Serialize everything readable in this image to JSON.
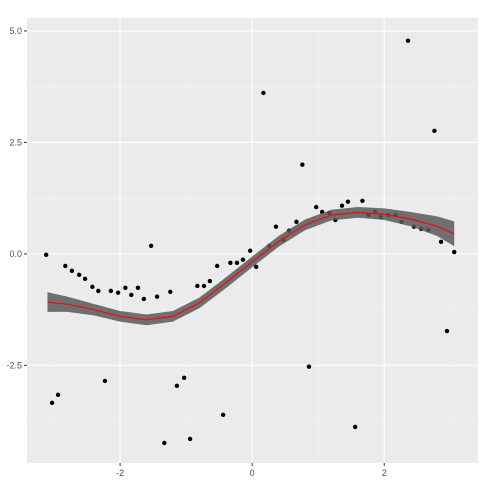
{
  "chart_data": {
    "type": "scatter",
    "x": [
      -3.12,
      -3.03,
      -2.94,
      -2.83,
      -2.73,
      -2.62,
      -2.53,
      -2.42,
      -2.33,
      -2.23,
      -2.14,
      -2.03,
      -1.92,
      -1.83,
      -1.73,
      -1.64,
      -1.53,
      -1.44,
      -1.33,
      -1.24,
      -1.14,
      -1.03,
      -0.94,
      -0.83,
      -0.73,
      -0.64,
      -0.53,
      -0.44,
      -0.33,
      -0.23,
      -0.14,
      -0.03,
      0.06,
      0.17,
      0.26,
      0.36,
      0.47,
      0.56,
      0.67,
      0.76,
      0.86,
      0.97,
      1.06,
      1.17,
      1.26,
      1.36,
      1.45,
      1.56,
      1.67,
      1.76,
      1.86,
      1.95,
      2.06,
      2.17,
      2.26,
      2.36,
      2.45,
      2.56,
      2.67,
      2.76,
      2.86,
      2.95,
      3.06
    ],
    "values": [
      -0.02,
      -3.34,
      -3.16,
      -0.27,
      -0.38,
      -0.47,
      -0.56,
      -0.74,
      -0.83,
      -2.85,
      -0.83,
      -0.87,
      -0.76,
      -0.92,
      -0.76,
      -1.01,
      0.18,
      -0.96,
      -4.24,
      -0.85,
      -2.96,
      -2.78,
      -4.15,
      -0.72,
      -0.72,
      -0.61,
      -0.27,
      -3.61,
      -0.2,
      -0.2,
      -0.13,
      0.07,
      -0.29,
      3.61,
      0.18,
      0.61,
      0.31,
      0.52,
      0.72,
      2.0,
      -2.53,
      1.05,
      0.94,
      0.92,
      0.76,
      1.08,
      1.17,
      -3.88,
      1.19,
      0.87,
      0.94,
      0.83,
      0.87,
      0.87,
      0.72,
      4.78,
      0.61,
      0.56,
      0.54,
      2.76,
      0.27,
      -1.73,
      0.04
    ],
    "color": "#000000",
    "smooth": {
      "color": "#ff0000",
      "band_color": "#595959",
      "x": [
        -3.1,
        -2.8,
        -2.4,
        -2.0,
        -1.6,
        -1.2,
        -0.8,
        -0.4,
        0,
        0.4,
        0.8,
        1.2,
        1.6,
        2.0,
        2.4,
        2.8,
        3.06
      ],
      "values": [
        -1.08,
        -1.13,
        -1.25,
        -1.4,
        -1.48,
        -1.4,
        -1.1,
        -0.65,
        -0.18,
        0.28,
        0.65,
        0.87,
        0.93,
        0.89,
        0.78,
        0.62,
        0.45
      ],
      "lower": [
        -1.3,
        -1.3,
        -1.38,
        -1.52,
        -1.6,
        -1.52,
        -1.22,
        -0.77,
        -0.3,
        0.16,
        0.53,
        0.75,
        0.81,
        0.76,
        0.62,
        0.4,
        0.17
      ],
      "upper": [
        -0.86,
        -0.96,
        -1.12,
        -1.28,
        -1.36,
        -1.28,
        -0.98,
        -0.53,
        -0.06,
        0.4,
        0.77,
        0.99,
        1.05,
        1.02,
        0.94,
        0.84,
        0.73
      ]
    },
    "xlim": [
      -3.41,
      3.42
    ],
    "ylim": [
      -4.69,
      5.29
    ],
    "xticks": [
      -2,
      0,
      2
    ],
    "yticks": [
      {
        "value": 5,
        "label": "5.0"
      },
      2.5,
      {
        "value": 0,
        "label": "0.0"
      },
      -2.5
    ],
    "x_minor_ticks": [
      -3,
      -1,
      1,
      3
    ],
    "y_minor_ticks": [
      3.75,
      1.25,
      -1.25,
      -3.75
    ],
    "grid": true
  }
}
